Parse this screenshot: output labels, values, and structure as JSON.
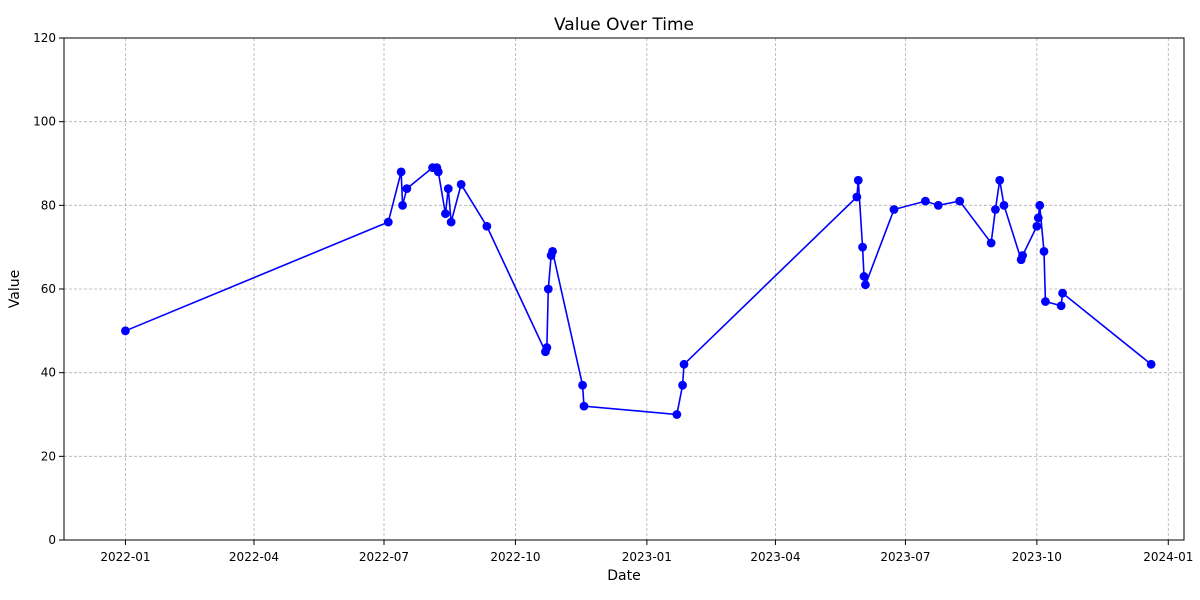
{
  "chart_data": {
    "type": "line",
    "title": "Value Over Time",
    "xlabel": "Date",
    "ylabel": "Value",
    "xlim": [
      "2021-11-19",
      "2024-01-12"
    ],
    "ylim": [
      0,
      120
    ],
    "x_ticks": [
      "2022-01-01",
      "2022-04-01",
      "2022-07-01",
      "2022-10-01",
      "2023-01-01",
      "2023-04-01",
      "2023-07-01",
      "2023-10-01",
      "2024-01-01"
    ],
    "x_tick_labels": [
      "2022-01",
      "2022-04",
      "2022-07",
      "2022-10",
      "2023-01",
      "2023-04",
      "2023-07",
      "2023-10",
      "2024-01"
    ],
    "y_ticks": [
      0,
      20,
      40,
      60,
      80,
      100,
      120
    ],
    "y_tick_labels": [
      "0",
      "20",
      "40",
      "60",
      "80",
      "100",
      "120"
    ],
    "grid": true,
    "color": "#0000ff",
    "series": [
      {
        "marker": "circle",
        "x": [
          "2022-01-01",
          "2022-07-04",
          "2022-07-13",
          "2022-07-14",
          "2022-07-17",
          "2022-08-04",
          "2022-08-07",
          "2022-08-08",
          "2022-08-13",
          "2022-08-15",
          "2022-08-17",
          "2022-08-24",
          "2022-09-11",
          "2022-10-22",
          "2022-10-23",
          "2022-10-24",
          "2022-10-26",
          "2022-10-27",
          "2022-11-17",
          "2022-11-18",
          "2023-01-22",
          "2023-01-26",
          "2023-01-27",
          "2023-05-28",
          "2023-05-29",
          "2023-06-01",
          "2023-06-02",
          "2023-06-03",
          "2023-06-23",
          "2023-07-15",
          "2023-07-24",
          "2023-08-08",
          "2023-08-30",
          "2023-09-02",
          "2023-09-05",
          "2023-09-08",
          "2023-09-20",
          "2023-09-21",
          "2023-10-01",
          "2023-10-02",
          "2023-10-03",
          "2023-10-06",
          "2023-10-07",
          "2023-10-18",
          "2023-10-19",
          "2023-12-20"
        ],
        "y": [
          50,
          76,
          88,
          80,
          84,
          89,
          89,
          88,
          78,
          84,
          76,
          85,
          75,
          45,
          46,
          60,
          68,
          69,
          37,
          32,
          30,
          37,
          42,
          82,
          86,
          70,
          63,
          61,
          79,
          81,
          80,
          81,
          71,
          79,
          86,
          80,
          67,
          68,
          75,
          77,
          80,
          69,
          57,
          56,
          59,
          42
        ]
      }
    ]
  }
}
